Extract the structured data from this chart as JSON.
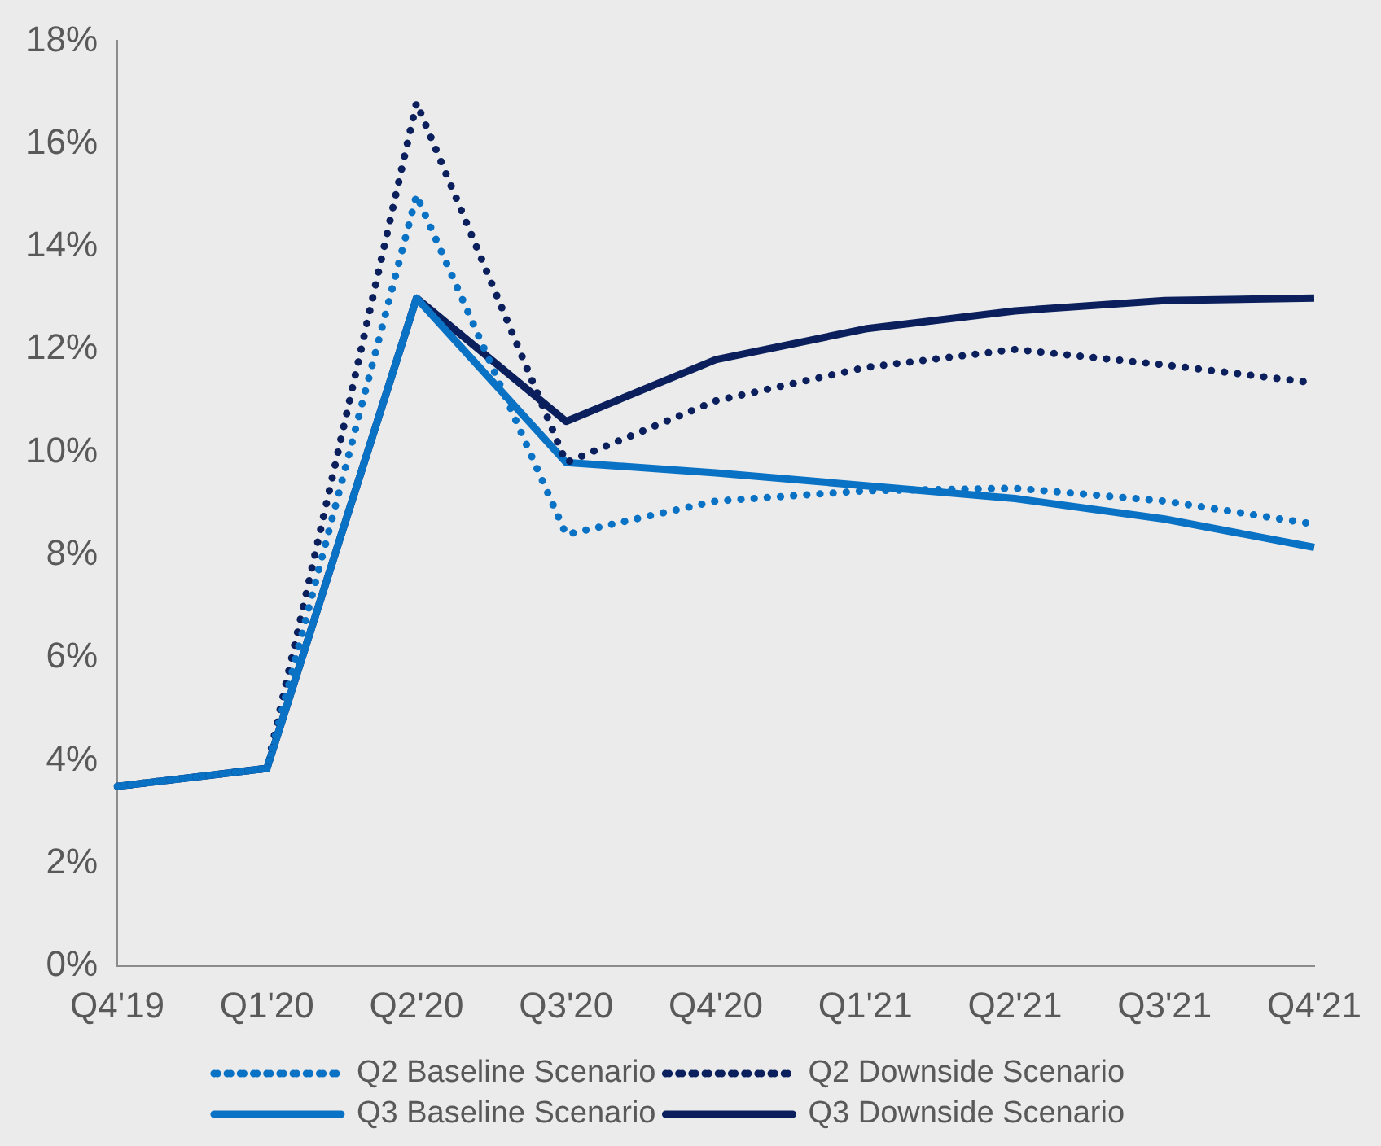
{
  "chart_data": {
    "type": "line",
    "categories": [
      "Q4'19",
      "Q1'20",
      "Q2'20",
      "Q3'20",
      "Q4'20",
      "Q1'21",
      "Q2'21",
      "Q3'21",
      "Q4'21"
    ],
    "series": [
      {
        "name": "Q2 Baseline Scenario",
        "color": "#0a72c4",
        "line_style": "dotted",
        "values": [
          3.5,
          3.85,
          15.0,
          8.4,
          9.05,
          9.25,
          9.3,
          9.05,
          8.6
        ]
      },
      {
        "name": "Q2 Downside Scenario",
        "color": "#0b1f5c",
        "line_style": "dotted",
        "values": [
          3.5,
          3.85,
          16.8,
          9.8,
          11.0,
          11.65,
          12.0,
          11.7,
          11.35
        ]
      },
      {
        "name": "Q3 Baseline Scenario",
        "color": "#0a72c4",
        "line_style": "solid",
        "values": [
          3.5,
          3.85,
          13.0,
          9.8,
          9.6,
          9.35,
          9.1,
          8.7,
          8.15
        ]
      },
      {
        "name": "Q3 Downside Scenario",
        "color": "#0b1f5c",
        "line_style": "solid",
        "values": [
          3.5,
          3.85,
          13.0,
          10.6,
          11.8,
          12.4,
          12.75,
          12.95,
          13.0
        ]
      }
    ],
    "ylim": [
      0,
      18
    ],
    "yticks": [
      {
        "value": 0,
        "label": "0%"
      },
      {
        "value": 2,
        "label": "2%"
      },
      {
        "value": 4,
        "label": "4%"
      },
      {
        "value": 6,
        "label": "6%"
      },
      {
        "value": 8,
        "label": "8%"
      },
      {
        "value": 10,
        "label": "10%"
      },
      {
        "value": 12,
        "label": "12%"
      },
      {
        "value": 14,
        "label": "14%"
      },
      {
        "value": 16,
        "label": "16%"
      },
      {
        "value": 18,
        "label": "18%"
      }
    ],
    "grid": false,
    "legend": "bottom",
    "marker": "none"
  }
}
